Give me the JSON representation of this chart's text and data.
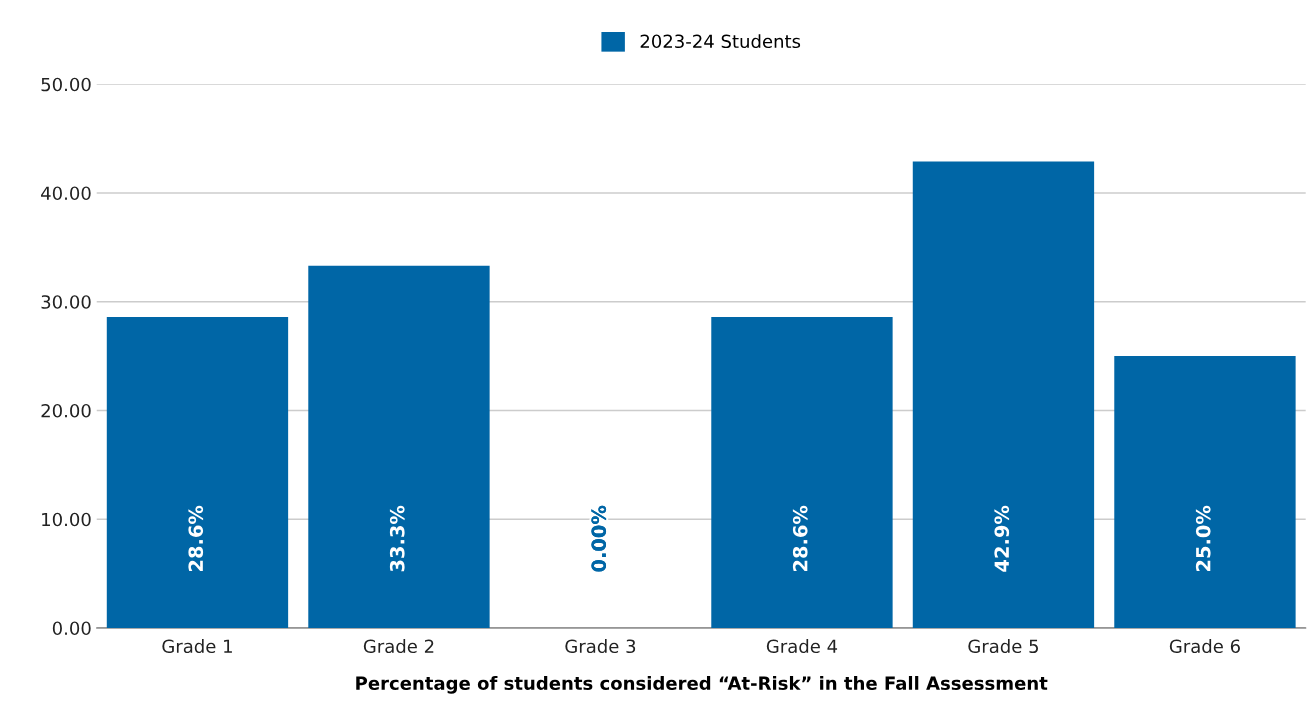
{
  "chart_data": {
    "type": "bar",
    "categories": [
      "Grade 1",
      "Grade 2",
      "Grade 3",
      "Grade 4",
      "Grade 5",
      "Grade 6"
    ],
    "series": [
      {
        "name": "2023-24 Students",
        "color": "#0066a6",
        "values": [
          28.6,
          33.3,
          0,
          28.6,
          42.9,
          25.0
        ],
        "value_labels": [
          "28.6%",
          "33.3%",
          "0.00%",
          "28.6%",
          "42.9%",
          "25.0%"
        ]
      }
    ],
    "xlabel": "Percentage of students considered “At-Risk” in the Fall Assessment",
    "ylim": [
      0,
      50
    ],
    "yticks": [
      {
        "value": 0,
        "label": "0.00"
      },
      {
        "value": 10,
        "label": "10.00"
      },
      {
        "value": 20,
        "label": "20.00"
      },
      {
        "value": 30,
        "label": "30.00"
      },
      {
        "value": 40,
        "label": "40.00"
      },
      {
        "value": 50,
        "label": "50.00"
      }
    ],
    "grid": "y",
    "legend": "top"
  }
}
